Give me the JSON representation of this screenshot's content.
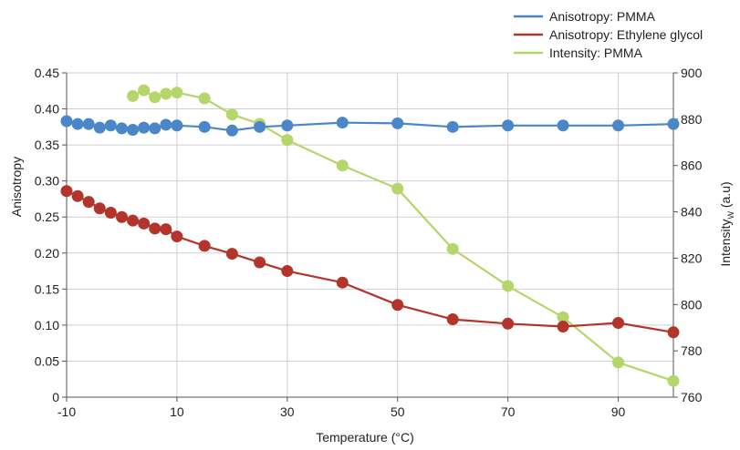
{
  "chart_data": {
    "type": "line",
    "x_ticks": [
      "-10",
      "10",
      "30",
      "50",
      "70",
      "90"
    ],
    "xlim": [
      -10,
      100
    ],
    "xlabel": "Temperature (°C)",
    "y_left": {
      "label": "Anisotropy",
      "ylim": [
        0,
        0.45
      ],
      "ticks": [
        "0",
        "0.05",
        "0.10",
        "0.15",
        "0.20",
        "0.25",
        "0.30",
        "0.35",
        "0.40",
        "0.45"
      ]
    },
    "y_right": {
      "label_main": "Intensity",
      "label_sub": "W",
      "label_unit": " (a.u)",
      "ylim": [
        760,
        900
      ],
      "ticks": [
        "760",
        "780",
        "800",
        "820",
        "840",
        "860",
        "880",
        "900"
      ]
    },
    "grid": true,
    "legend_position": "top-right",
    "series": [
      {
        "name": "Anisotropy: PMMA",
        "color": "#4a86c8",
        "axis": "left",
        "points": [
          [
            -10,
            0.383
          ],
          [
            -8,
            0.379
          ],
          [
            -6,
            0.379
          ],
          [
            -4,
            0.374
          ],
          [
            -2,
            0.377
          ],
          [
            0,
            0.373
          ],
          [
            2,
            0.371
          ],
          [
            4,
            0.374
          ],
          [
            6,
            0.373
          ],
          [
            8,
            0.378
          ],
          [
            10,
            0.377
          ],
          [
            15,
            0.375
          ],
          [
            20,
            0.37
          ],
          [
            25,
            0.375
          ],
          [
            30,
            0.377
          ],
          [
            40,
            0.381
          ],
          [
            50,
            0.38
          ],
          [
            60,
            0.375
          ],
          [
            70,
            0.377
          ],
          [
            80,
            0.377
          ],
          [
            90,
            0.377
          ],
          [
            100,
            0.379
          ]
        ]
      },
      {
        "name": "Anisotropy: Ethylene glycol",
        "color": "#b3342a",
        "axis": "left",
        "points": [
          [
            -10,
            0.286
          ],
          [
            -8,
            0.279
          ],
          [
            -6,
            0.271
          ],
          [
            -4,
            0.262
          ],
          [
            -2,
            0.256
          ],
          [
            0,
            0.25
          ],
          [
            2,
            0.245
          ],
          [
            4,
            0.241
          ],
          [
            6,
            0.234
          ],
          [
            8,
            0.233
          ],
          [
            10,
            0.223
          ],
          [
            15,
            0.21
          ],
          [
            20,
            0.199
          ],
          [
            25,
            0.187
          ],
          [
            30,
            0.175
          ],
          [
            40,
            0.159
          ],
          [
            50,
            0.128
          ],
          [
            60,
            0.108
          ],
          [
            70,
            0.102
          ],
          [
            80,
            0.098
          ],
          [
            90,
            0.103
          ],
          [
            100,
            0.09
          ]
        ]
      },
      {
        "name": "Intensity: PMMA",
        "color": "#b5d66a",
        "axis": "right",
        "points": [
          [
            2,
            890
          ],
          [
            4,
            892.5
          ],
          [
            6,
            889.5
          ],
          [
            8,
            891
          ],
          [
            10,
            891.5
          ],
          [
            15,
            889
          ],
          [
            20,
            882
          ],
          [
            25,
            878
          ],
          [
            30,
            871
          ],
          [
            40,
            860
          ],
          [
            50,
            850
          ],
          [
            60,
            824
          ],
          [
            70,
            808
          ],
          [
            80,
            794.5
          ],
          [
            90,
            775
          ],
          [
            100,
            767
          ]
        ]
      }
    ]
  }
}
